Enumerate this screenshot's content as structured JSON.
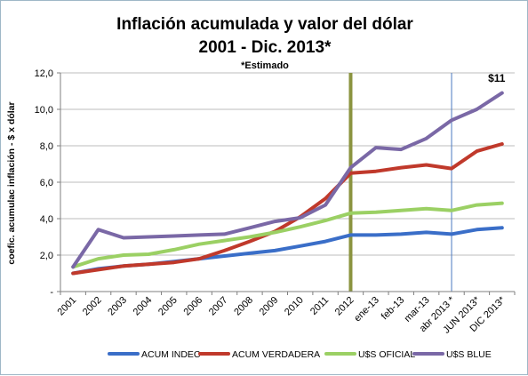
{
  "chart_data": {
    "type": "line",
    "title_line1": "Inflación acumulada  y valor del dólar",
    "title_line2": "2001 - Dic. 2013*",
    "subtitle": "*Estimado",
    "ylabel": "coefic. acumulac inflación - $ x dólar",
    "xlabel": "",
    "ylim": [
      0,
      12
    ],
    "y_ticks": [
      0,
      2,
      4,
      6,
      8,
      10,
      12
    ],
    "y_tick_labels": [
      "-",
      "2,0",
      "4,0",
      "6,0",
      "8,0",
      "10,0",
      "12,0"
    ],
    "grid": true,
    "legend_position": "bottom",
    "categories": [
      "2001",
      "2002",
      "2003",
      "2004",
      "2005",
      "2006",
      "2007",
      "2008",
      "2009",
      "2010",
      "2011",
      "2012",
      "ene-13",
      "feb-13",
      "mar-13",
      "abr 2013 *",
      "JUN 2013*",
      "DIC 2013*"
    ],
    "series": [
      {
        "name": "ACUM INDEC",
        "color": "#3a6ec8",
        "values": [
          1.0,
          1.25,
          1.4,
          1.5,
          1.65,
          1.8,
          1.95,
          2.1,
          2.25,
          2.5,
          2.75,
          3.1,
          3.1,
          3.15,
          3.25,
          3.15,
          3.4,
          3.5
        ]
      },
      {
        "name": "ACUM VERDADERA",
        "color": "#c0392b",
        "values": [
          1.0,
          1.2,
          1.4,
          1.5,
          1.6,
          1.8,
          2.25,
          2.75,
          3.3,
          4.1,
          5.1,
          6.5,
          6.6,
          6.8,
          6.95,
          6.75,
          7.7,
          8.1
        ]
      },
      {
        "name": "U$S OFICIAL",
        "color": "#9bd064",
        "values": [
          1.35,
          1.8,
          2.0,
          2.05,
          2.3,
          2.6,
          2.8,
          3.0,
          3.25,
          3.55,
          3.9,
          4.3,
          4.35,
          4.45,
          4.55,
          4.45,
          4.75,
          4.85
        ]
      },
      {
        "name": "U$S BLUE",
        "color": "#7a68a6",
        "values": [
          1.35,
          3.4,
          2.95,
          3.0,
          3.05,
          3.1,
          3.15,
          3.5,
          3.85,
          4.05,
          4.75,
          6.8,
          7.9,
          7.8,
          8.4,
          9.4,
          10.0,
          10.9
        ]
      }
    ],
    "annotations": [
      {
        "text": "$11",
        "category_index": 17,
        "y": 11.7
      }
    ],
    "vertical_markers": [
      {
        "category_index": 11,
        "color": "#8b9440",
        "style": "thick"
      },
      {
        "category_index": 15,
        "color": "#4a78c0",
        "style": "thin"
      }
    ]
  }
}
